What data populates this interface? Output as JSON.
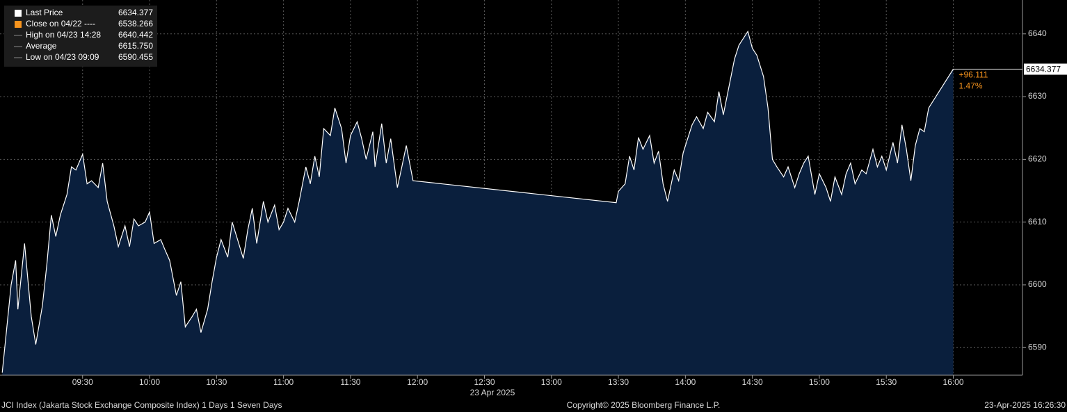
{
  "chart_data": {
    "type": "area",
    "series": [
      {
        "name": "Last Price",
        "color": "#ffffff",
        "fill": "#0a1f3d",
        "x": [
          "08:54",
          "08:58",
          "09:00",
          "09:01",
          "09:04",
          "09:07",
          "09:09",
          "09:12",
          "09:14",
          "09:16",
          "09:18",
          "09:20",
          "09:23",
          "09:25",
          "09:27",
          "09:30",
          "09:32",
          "09:34",
          "09:37",
          "09:39",
          "09:41",
          "09:44",
          "09:46",
          "09:49",
          "09:51",
          "09:53",
          "09:55",
          "09:58",
          "10:00",
          "10:02",
          "10:05",
          "10:07",
          "10:09",
          "10:12",
          "10:14",
          "10:16",
          "10:19",
          "10:21",
          "10:23",
          "10:26",
          "10:28",
          "10:30",
          "10:32",
          "10:35",
          "10:37",
          "10:39",
          "10:42",
          "10:44",
          "10:46",
          "10:48",
          "10:51",
          "10:53",
          "10:56",
          "10:58",
          "11:00",
          "11:02",
          "11:05",
          "11:07",
          "11:10",
          "11:12",
          "11:14",
          "11:16",
          "11:18",
          "11:21",
          "11:23",
          "11:26",
          "11:28",
          "11:30",
          "11:33",
          "11:35",
          "11:37",
          "11:40",
          "11:41",
          "11:44",
          "11:46",
          "11:48",
          "11:51",
          "11:53",
          "11:55",
          "11:58",
          "13:29",
          "13:30",
          "13:33",
          "13:35",
          "13:37",
          "13:39",
          "13:41",
          "13:44",
          "13:46",
          "13:48",
          "13:50",
          "13:52",
          "13:55",
          "13:57",
          "13:59",
          "14:01",
          "14:03",
          "14:05",
          "14:08",
          "14:10",
          "14:13",
          "14:15",
          "14:17",
          "14:20",
          "14:22",
          "14:24",
          "14:26",
          "14:28",
          "14:30",
          "14:32",
          "14:35",
          "14:37",
          "14:39",
          "14:41",
          "14:44",
          "14:46",
          "14:49",
          "14:51",
          "14:53",
          "14:55",
          "14:58",
          "15:00",
          "15:03",
          "15:05",
          "15:07",
          "15:10",
          "15:12",
          "15:14",
          "15:16",
          "15:19",
          "15:21",
          "15:24",
          "15:26",
          "15:28",
          "15:30",
          "15:33",
          "15:35",
          "15:37",
          "15:39",
          "15:41",
          "15:43",
          "15:45",
          "15:47",
          "15:49",
          "16:00"
        ],
        "values": [
          6586.0,
          6600.0,
          6603.9,
          6596.1,
          6606.6,
          6595.0,
          6590.5,
          6596.7,
          6603.3,
          6611.1,
          6607.7,
          6611.1,
          6614.4,
          6618.8,
          6618.3,
          6620.8,
          6616.1,
          6616.6,
          6615.5,
          6619.4,
          6613.3,
          6609.4,
          6606.1,
          6609.4,
          6606.1,
          6610.5,
          6609.4,
          6610.0,
          6611.6,
          6606.6,
          6607.2,
          6605.5,
          6603.9,
          6598.3,
          6600.5,
          6593.3,
          6594.9,
          6596.1,
          6592.4,
          6596.1,
          6600.5,
          6604.4,
          6607.2,
          6604.4,
          6610.0,
          6607.7,
          6604.2,
          6608.8,
          6612.2,
          6606.6,
          6613.3,
          6610.0,
          6612.7,
          6608.8,
          6610.0,
          6612.2,
          6610.0,
          6613.3,
          6618.8,
          6616.1,
          6620.5,
          6617.2,
          6624.9,
          6623.8,
          6628.2,
          6624.9,
          6619.4,
          6623.8,
          6626.0,
          6623.3,
          6620.0,
          6624.4,
          6618.8,
          6625.7,
          6619.4,
          6623.3,
          6615.5,
          6618.8,
          6622.2,
          6616.6,
          6613.1,
          6614.9,
          6616.1,
          6620.5,
          6618.3,
          6623.5,
          6621.6,
          6623.8,
          6619.4,
          6621.3,
          6616.1,
          6613.3,
          6618.3,
          6616.6,
          6621.0,
          6623.3,
          6625.5,
          6626.8,
          6624.9,
          6627.5,
          6626.0,
          6630.8,
          6627.1,
          6632.4,
          6636.0,
          6638.2,
          6639.3,
          6640.4,
          6637.7,
          6636.6,
          6633.2,
          6628.2,
          6620.0,
          6618.8,
          6617.2,
          6618.8,
          6615.5,
          6617.7,
          6619.4,
          6620.5,
          6614.4,
          6617.7,
          6615.5,
          6613.3,
          6617.2,
          6614.4,
          6617.7,
          6619.4,
          6616.1,
          6618.3,
          6617.7,
          6621.6,
          6618.8,
          6620.5,
          6618.3,
          6622.7,
          6619.4,
          6625.5,
          6621.6,
          6616.6,
          6622.2,
          6624.9,
          6624.4,
          6628.2,
          6634.377
        ]
      }
    ],
    "xlim": [
      "08:53",
      "16:31"
    ],
    "xticks": [
      "09:30",
      "10:00",
      "10:30",
      "11:00",
      "11:30",
      "12:00",
      "12:30",
      "13:00",
      "13:30",
      "14:00",
      "14:30",
      "15:00",
      "15:30",
      "16:00"
    ],
    "ylim": [
      6585.6,
      6645.4
    ],
    "yticks": [
      6590,
      6600,
      6610,
      6620,
      6630,
      6640
    ],
    "grid": true,
    "x_label": "23 Apr 2025",
    "legend": [
      {
        "name": "Last Price",
        "value": 6634.377,
        "color": "#ffffff"
      },
      {
        "name": "Close on 04/22 ----",
        "value": 6538.266,
        "color": "#f7941d"
      },
      {
        "name": "High on 04/23 14:28",
        "value": 6640.442
      },
      {
        "name": "Average",
        "value": 6615.75,
        "value_label": "6615.750"
      },
      {
        "name": "Low on 04/23 09:09",
        "value": 6590.455
      }
    ],
    "change": {
      "value": 96.111,
      "label": "+96.111"
    },
    "change_pct": {
      "value": 1.47,
      "label": "1.47%"
    },
    "change_color": "#f7941d",
    "footer": {
      "left": "JCI Index (Jakarta Stock Exchange Composite Index) 1 Days 1 Seven Days",
      "center": "Copyright© 2025 Bloomberg Finance L.P.",
      "right": "23-Apr-2025 16:26:30"
    }
  }
}
